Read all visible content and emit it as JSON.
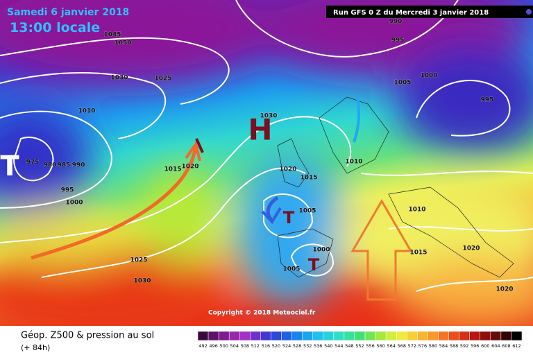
{
  "header": {
    "date": "Samedi 6 janvier 2018",
    "time": "13:00 locale",
    "run": "Run GFS 0 Z du Mercredi 3 janvier 2018"
  },
  "map": {
    "pressure_labels": [
      "1045",
      "1050",
      "1030",
      "1025",
      "1010",
      "975",
      "980",
      "985",
      "990",
      "995",
      "1000",
      "1015",
      "1020",
      "1030",
      "1020",
      "1015",
      "1005",
      "1000",
      "1005",
      "1025",
      "1030",
      "990",
      "995",
      "1000",
      "1005",
      "995",
      "1010",
      "1010",
      "1015",
      "1020",
      "1020"
    ],
    "symbols": [
      "H",
      "T",
      "T",
      "T"
    ],
    "copyright": "Copyright © 2018 Meteociel.fr"
  },
  "legend": {
    "title": "Géop. Z500 & pression au sol",
    "lead": "(+ 84h)",
    "scale": [
      492,
      496,
      500,
      504,
      508,
      512,
      516,
      520,
      524,
      528,
      532,
      536,
      540,
      544,
      548,
      552,
      556,
      560,
      564,
      568,
      572,
      576,
      580,
      584,
      588,
      592,
      596,
      600,
      604,
      608,
      612
    ]
  }
}
